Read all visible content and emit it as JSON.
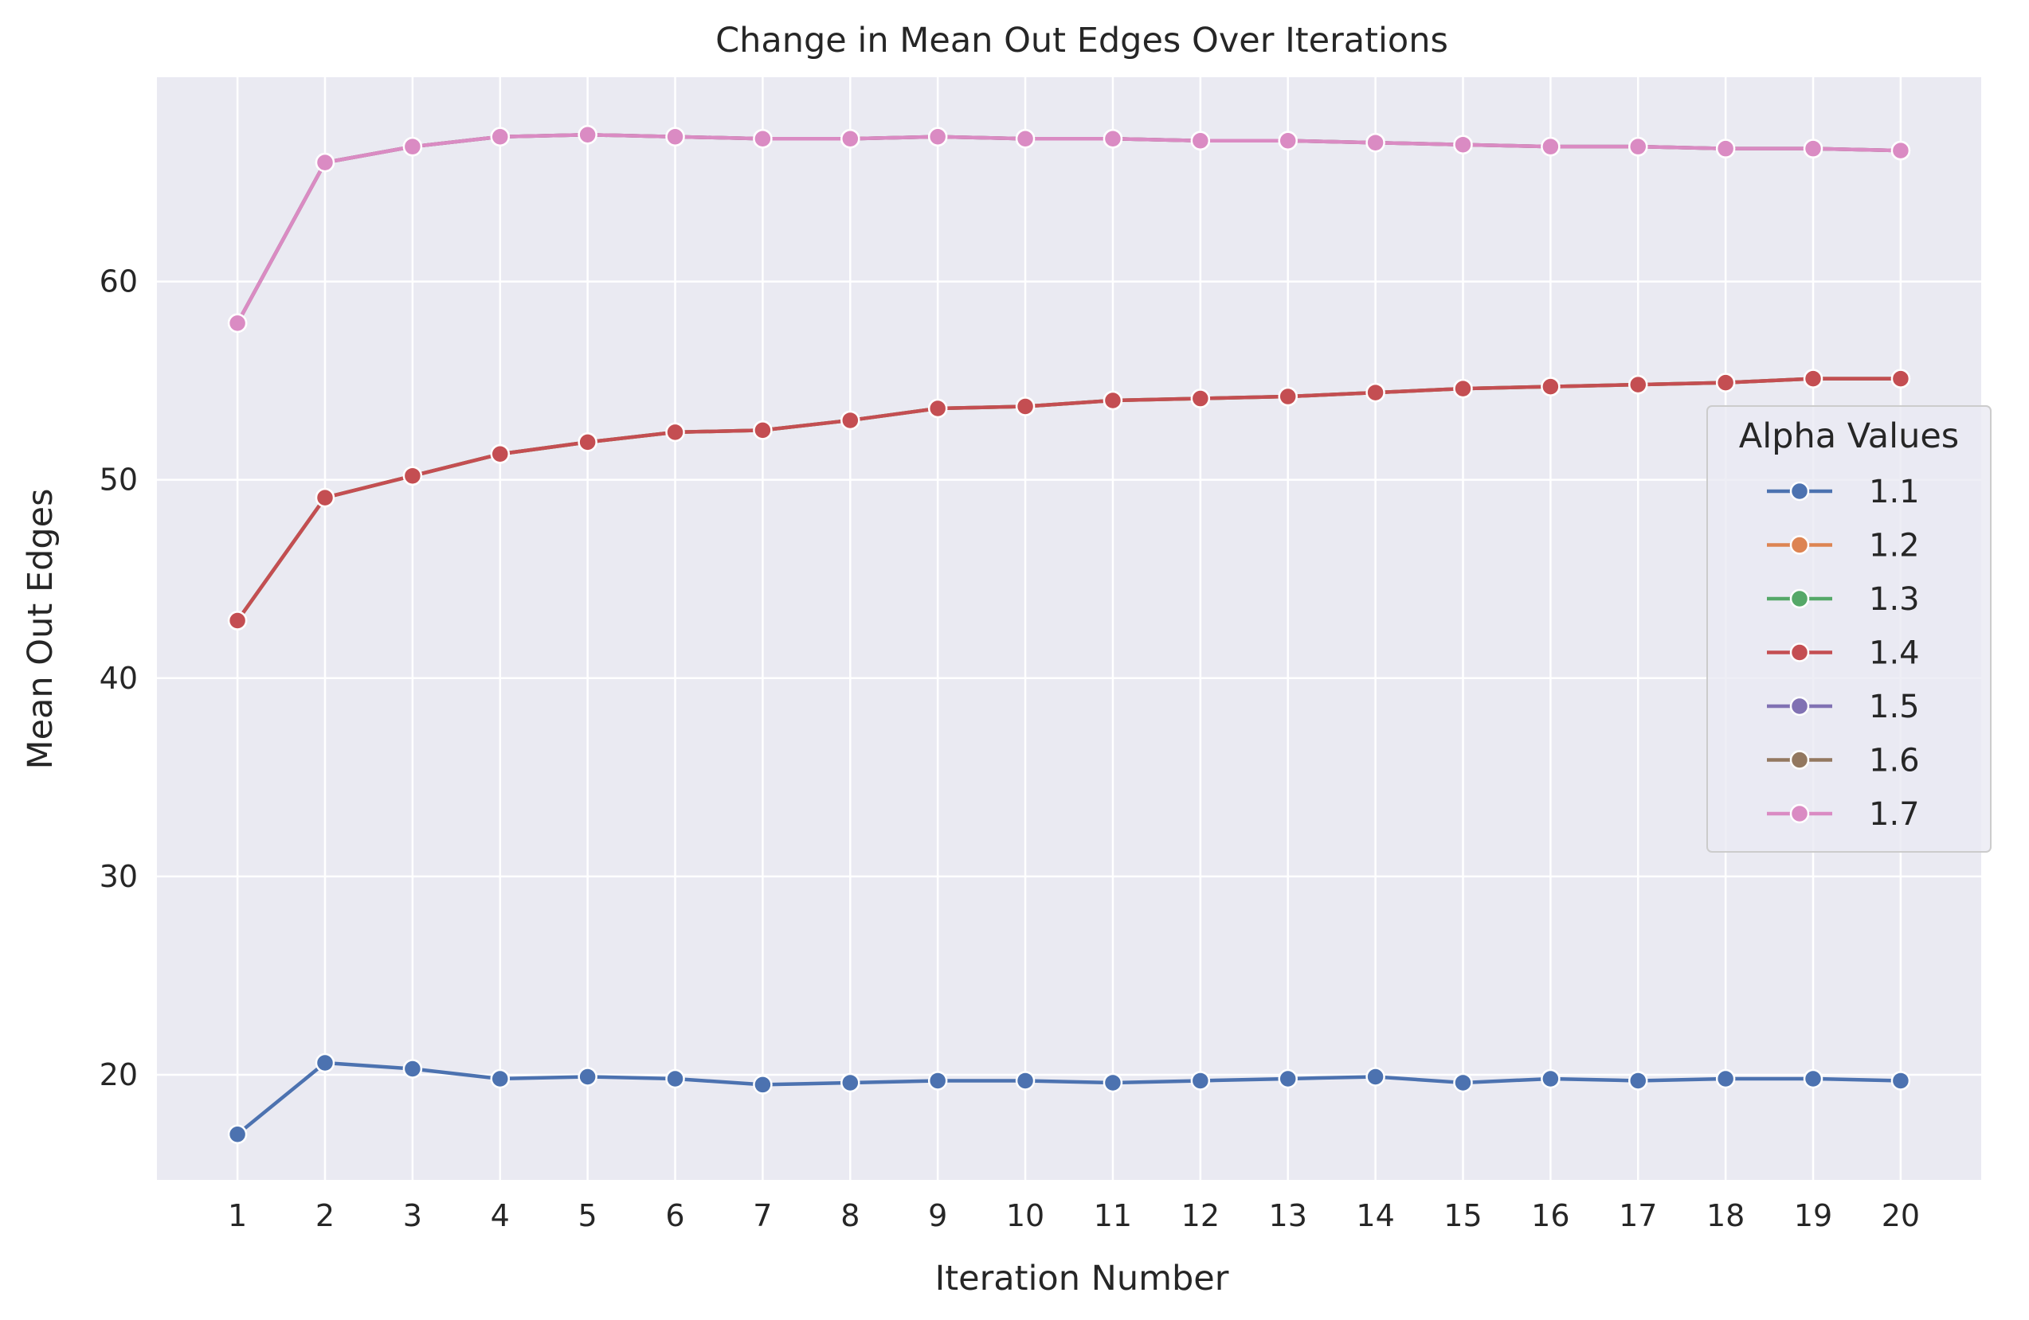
{
  "chart_data": {
    "type": "line",
    "title": "Change in Mean Out Edges Over Iterations",
    "xlabel": "Iteration Number",
    "ylabel": "Mean Out Edges",
    "x": [
      1,
      2,
      3,
      4,
      5,
      6,
      7,
      8,
      9,
      10,
      11,
      12,
      13,
      14,
      15,
      16,
      17,
      18,
      19,
      20
    ],
    "xticks": [
      "1",
      "2",
      "3",
      "4",
      "5",
      "6",
      "7",
      "8",
      "9",
      "10",
      "11",
      "12",
      "13",
      "14",
      "15",
      "16",
      "17",
      "18",
      "19",
      "20"
    ],
    "yticks": [
      20,
      30,
      40,
      50,
      60
    ],
    "ytick_labels": [
      "20",
      "30",
      "40",
      "50",
      "60"
    ],
    "xlim": [
      0.08,
      20.92
    ],
    "ylim": [
      14.7,
      70.3
    ],
    "grid": true,
    "legend": {
      "title": "Alpha Values",
      "placement": "right"
    },
    "series": [
      {
        "name": "1.1",
        "color": "#4c72b0",
        "values": [
          17.0,
          20.6,
          20.3,
          19.8,
          19.9,
          19.8,
          19.5,
          19.6,
          19.7,
          19.7,
          19.6,
          19.7,
          19.8,
          19.9,
          19.6,
          19.8,
          19.7,
          19.8,
          19.8,
          19.7
        ]
      },
      {
        "name": "1.2",
        "color": "#dd8452",
        "values": [
          42.9,
          49.1,
          50.2,
          51.3,
          51.9,
          52.4,
          52.5,
          53.0,
          53.6,
          53.7,
          54.0,
          54.1,
          54.2,
          54.4,
          54.6,
          54.7,
          54.8,
          54.9,
          55.1,
          55.1
        ]
      },
      {
        "name": "1.3",
        "color": "#55a868",
        "values": [
          42.9,
          49.1,
          50.2,
          51.3,
          51.9,
          52.4,
          52.5,
          53.0,
          53.6,
          53.7,
          54.0,
          54.1,
          54.2,
          54.4,
          54.6,
          54.7,
          54.8,
          54.9,
          55.1,
          55.1
        ]
      },
      {
        "name": "1.4",
        "color": "#c44e52",
        "values": [
          42.9,
          49.1,
          50.2,
          51.3,
          51.9,
          52.4,
          52.5,
          53.0,
          53.6,
          53.7,
          54.0,
          54.1,
          54.2,
          54.4,
          54.6,
          54.7,
          54.8,
          54.9,
          55.1,
          55.1
        ]
      },
      {
        "name": "1.5",
        "color": "#8172b3",
        "values": [
          57.9,
          66.0,
          66.8,
          67.3,
          67.4,
          67.3,
          67.2,
          67.2,
          67.3,
          67.2,
          67.2,
          67.1,
          67.1,
          67.0,
          66.9,
          66.8,
          66.8,
          66.7,
          66.7,
          66.6
        ]
      },
      {
        "name": "1.6",
        "color": "#937860",
        "values": [
          57.9,
          66.0,
          66.8,
          67.3,
          67.4,
          67.3,
          67.2,
          67.2,
          67.3,
          67.2,
          67.2,
          67.1,
          67.1,
          67.0,
          66.9,
          66.8,
          66.8,
          66.7,
          66.7,
          66.6
        ]
      },
      {
        "name": "1.7",
        "color": "#da8bc3",
        "values": [
          57.9,
          66.0,
          66.8,
          67.3,
          67.4,
          67.3,
          67.2,
          67.2,
          67.3,
          67.2,
          67.2,
          67.1,
          67.1,
          67.0,
          66.9,
          66.8,
          66.8,
          66.7,
          66.7,
          66.6
        ]
      }
    ]
  },
  "colors": {
    "plot_background": "#eaeaf2",
    "grid": "#ffffff",
    "text": "#262626"
  }
}
